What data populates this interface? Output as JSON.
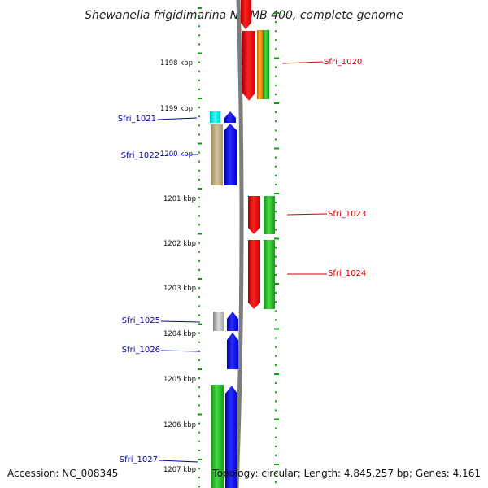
{
  "title": "Shewanella frigidimarina NCIMB 400, complete genome",
  "footer": {
    "accession": "Accession: NC_008345",
    "topology": "Topology: circular; Length: 4,845,257 bp; Genes: 4,161"
  },
  "axis_labels": [
    "1198 kbp",
    "1199 kbp",
    "1200 kbp",
    "1201 kbp",
    "1202 kbp",
    "1203 kbp",
    "1204 kbp",
    "1205 kbp",
    "1206 kbp",
    "1207 kbp"
  ],
  "genes": {
    "left": [
      {
        "name": "Sfri_1021",
        "color": "#0000aa"
      },
      {
        "name": "Sfri_1022",
        "color": "#0000aa"
      },
      {
        "name": "Sfri_1025",
        "color": "#0000aa"
      },
      {
        "name": "Sfri_1026",
        "color": "#0000aa"
      },
      {
        "name": "Sfri_1027",
        "color": "#0000aa"
      }
    ],
    "right": [
      {
        "name": "Sfri_1020",
        "color": "#cc0000"
      },
      {
        "name": "Sfri_1023",
        "color": "#cc0000"
      },
      {
        "name": "Sfri_1024",
        "color": "#cc0000"
      }
    ]
  },
  "colors": {
    "forward": "#ff0000",
    "reverse": "#0000ff",
    "cds": "#22bb22",
    "backbone": "#888888",
    "tick": "#00aa00",
    "orange": "#ff8800",
    "cyan": "#00e5e5",
    "tan": "#b8a878",
    "gray": "#bbbbbb"
  }
}
